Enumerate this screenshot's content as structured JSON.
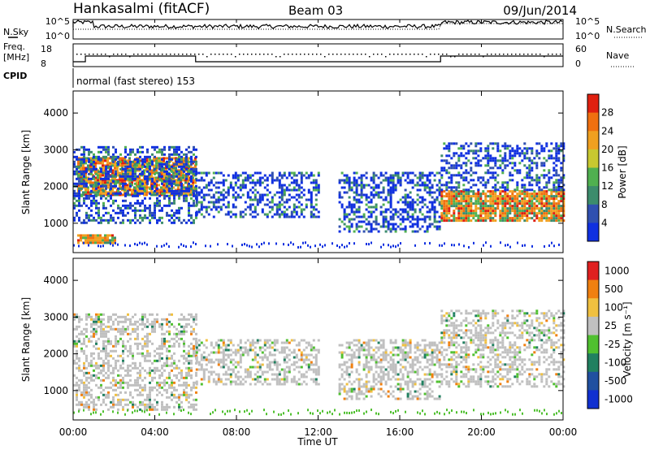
{
  "header": {
    "station": "Hankasalmi (fitACF)",
    "beam": "Beam 03",
    "date": "09/Jun/2014"
  },
  "noise_panel": {
    "left_label": "N.Sky",
    "right_label": "N.Search",
    "left_ticks": [
      "10^5",
      "10^0"
    ],
    "right_ticks": [
      "10^5",
      "10^0"
    ]
  },
  "freq_panel": {
    "left_label_1": "Freq.",
    "left_label_2": "[MHz]",
    "right_label": "Nave",
    "left_ticks": [
      "18",
      "8"
    ],
    "right_ticks": [
      "60",
      "0"
    ]
  },
  "cpid": {
    "label": "CPID",
    "mode": "normal (fast stereo) 153"
  },
  "x_axis": {
    "title": "Time UT",
    "ticks": [
      "00:00",
      "04:00",
      "08:00",
      "12:00",
      "16:00",
      "20:00",
      "00:00"
    ]
  },
  "chart_data": [
    {
      "type": "heatmap",
      "name": "power",
      "ylabel": "Slant Range [km]",
      "ylim": [
        200,
        4600
      ],
      "y_ticks": [
        "4000",
        "3000",
        "2000",
        "1000"
      ],
      "xlim_hours": [
        0,
        24
      ],
      "colorbar": {
        "label": "Power [dB]",
        "ticks": [
          "28",
          "24",
          "20",
          "16",
          "12",
          "8",
          "4"
        ],
        "colors": [
          "#1030e0",
          "#3050b0",
          "#3c8c6c",
          "#50b050",
          "#c8c830",
          "#f0a020",
          "#f07010",
          "#e02010"
        ]
      },
      "regions": [
        {
          "t": [
            0.2,
            6.0
          ],
          "r": [
            1800,
            2800
          ],
          "level": "high"
        },
        {
          "t": [
            0.0,
            6.0
          ],
          "r": [
            1000,
            3100
          ],
          "level": "low"
        },
        {
          "t": [
            0.2,
            2.0
          ],
          "r": [
            500,
            700
          ],
          "level": "high"
        },
        {
          "t": [
            6.0,
            12.0
          ],
          "r": [
            1200,
            2400
          ],
          "level": "low"
        },
        {
          "t": [
            13.0,
            18.0
          ],
          "r": [
            800,
            2400
          ],
          "level": "low"
        },
        {
          "t": [
            18.0,
            24.0
          ],
          "r": [
            1100,
            1900
          ],
          "level": "high"
        },
        {
          "t": [
            18.0,
            24.0
          ],
          "r": [
            1900,
            3200
          ],
          "level": "low"
        }
      ]
    },
    {
      "type": "heatmap",
      "name": "velocity",
      "ylabel": "Slant Range [km]",
      "ylim": [
        200,
        4600
      ],
      "y_ticks": [
        "4000",
        "3000",
        "2000",
        "1000"
      ],
      "xlim_hours": [
        0,
        24
      ],
      "colorbar": {
        "label": "Velocity [m s⁻¹]",
        "ticks": [
          "1000",
          "500",
          "100",
          "25",
          "-25",
          "-100",
          "-500",
          "-1000"
        ],
        "colors": [
          "#1030d0",
          "#2050a0",
          "#208060",
          "#50c030",
          "#c0c0c0",
          "#f0c040",
          "#f08010",
          "#e02020"
        ]
      },
      "regions": [
        {
          "t": [
            0.0,
            6.0
          ],
          "r": [
            500,
            3100
          ],
          "level": "near-zero"
        },
        {
          "t": [
            6.0,
            12.0
          ],
          "r": [
            1200,
            2400
          ],
          "level": "near-zero"
        },
        {
          "t": [
            13.0,
            18.0
          ],
          "r": [
            800,
            2400
          ],
          "level": "near-zero"
        },
        {
          "t": [
            18.0,
            24.0
          ],
          "r": [
            1100,
            3200
          ],
          "level": "near-zero"
        }
      ]
    }
  ]
}
